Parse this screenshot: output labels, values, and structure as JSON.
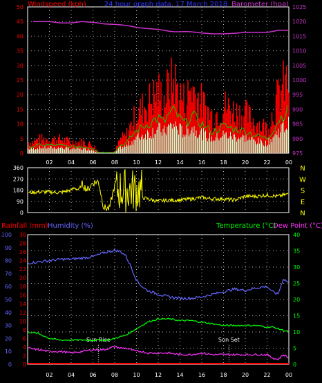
{
  "header": {
    "title": "24 hour graph data, 17 March 2018",
    "windspeed_label": "Windspeed (kph)",
    "barometer_label": "Barometer (hpa)"
  },
  "bottom_labels": {
    "rainfall": "Rainfall (mm)",
    "humidity": "Humidity (%)",
    "temperature": "Temperature (°C)",
    "dewpoint": "Dew Point (°C)",
    "sunrise": "Sun Rise",
    "sunset": "Sun Set"
  },
  "colors": {
    "windspeed": "#ff0000",
    "gust_fill": "#ccffcc",
    "wind_green": "#00cc00",
    "barometer": "#cc33cc",
    "direction": "#ffff00",
    "humidity": "#6666ff",
    "temperature": "#00ff00",
    "dewpoint": "#ff33ff",
    "rainfall": "#ff0000",
    "grid": "#bbbbbb"
  },
  "chart_data": [
    {
      "type": "line",
      "panel": "wind",
      "title": "24 hour graph data, 17 March 2018",
      "x_ticks": [
        "02",
        "04",
        "06",
        "08",
        "10",
        "12",
        "14",
        "16",
        "18",
        "20",
        "22",
        "00"
      ],
      "y_left_label": "Windspeed (kph)",
      "y_left_ticks": [
        "0",
        "5",
        "10",
        "15",
        "20",
        "25",
        "30",
        "35",
        "40",
        "45",
        "50"
      ],
      "y_left_lim": [
        0,
        50
      ],
      "y_right_label": "Barometer (hpa)",
      "y_right_ticks": [
        "975",
        "980",
        "985",
        "990",
        "995",
        "1000",
        "1005",
        "1010",
        "1015",
        "1020",
        "1025"
      ],
      "y_right_lim": [
        975,
        1025
      ],
      "x": [
        0.5,
        1,
        2,
        3,
        4,
        5,
        6,
        6.5,
        7,
        8,
        8.5,
        9,
        9.5,
        10,
        11,
        12,
        12.5,
        13,
        13.5,
        14,
        14.5,
        15,
        16,
        17,
        18,
        19,
        20,
        21,
        22,
        22.5,
        23,
        23.5,
        24
      ],
      "series": [
        {
          "name": "Windspeed (kph)",
          "values": [
            4,
            5,
            5,
            5,
            4,
            4,
            3,
            0.5,
            0.5,
            0.5,
            5,
            6,
            10,
            14,
            18,
            22,
            19,
            24,
            26,
            21,
            18,
            24,
            18,
            13,
            17,
            15,
            14,
            11,
            9,
            14,
            20,
            24,
            26
          ]
        },
        {
          "name": "Barometer (hpa)",
          "values": [
            1020,
            1020,
            1020,
            1019.5,
            1019.5,
            1020,
            1019.7,
            1019.5,
            1019.2,
            1019,
            1018.9,
            1018.7,
            1018.4,
            1018,
            1017.6,
            1017.3,
            1017,
            1016.7,
            1016.5,
            1016.5,
            1016.6,
            1016.5,
            1016.1,
            1015.8,
            1015.8,
            1016,
            1016.3,
            1016.3,
            1016.3,
            1016.6,
            1017,
            1017,
            1017
          ]
        }
      ]
    },
    {
      "type": "scatter",
      "panel": "direction",
      "y_left_ticks": [
        "0",
        "90",
        "180",
        "270",
        "360"
      ],
      "y_lim": [
        0,
        360
      ],
      "y_right_labels": [
        "N",
        "W",
        "S",
        "E",
        "N"
      ],
      "x": [
        0,
        1,
        2,
        3,
        3.5,
        4,
        4.3,
        4.7,
        5,
        5.5,
        6,
        6.5,
        7,
        7.5,
        8,
        8.5,
        9,
        9.5,
        10,
        11,
        12,
        13,
        14,
        15,
        16,
        17,
        18,
        19,
        20,
        21,
        22,
        23,
        24
      ],
      "series": [
        {
          "name": "Direction",
          "values": [
            160,
            165,
            165,
            160,
            170,
            180,
            200,
            180,
            230,
            180,
            240,
            250,
            40,
            30,
            220,
            220,
            200,
            290,
            130,
            110,
            90,
            100,
            100,
            110,
            120,
            110,
            110,
            100,
            130,
            130,
            140,
            130,
            150
          ]
        }
      ]
    },
    {
      "type": "line",
      "panel": "temperature",
      "x_ticks": [
        "02",
        "04",
        "06",
        "08",
        "10",
        "12",
        "14",
        "16",
        "18",
        "20",
        "22",
        "00"
      ],
      "y_rain_label": "Rainfall (mm)",
      "y_rain_ticks": [
        "0",
        "2",
        "4",
        "6",
        "8",
        "10",
        "12",
        "14",
        "16",
        "18",
        "20",
        "22",
        "24",
        "26",
        "28",
        "30"
      ],
      "y_rain_lim": [
        0,
        30
      ],
      "y_humidity_label": "Humidity (%)",
      "y_humidity_ticks": [
        "0",
        "10",
        "20",
        "30",
        "40",
        "50",
        "60",
        "70",
        "80",
        "90",
        "100"
      ],
      "y_humidity_lim": [
        0,
        100
      ],
      "y_right_label": "Temperature (°C)",
      "y_right_label_2": "Dew Point (°C)",
      "y_right_ticks": [
        "0",
        "5",
        "10",
        "15",
        "20",
        "25",
        "30",
        "35",
        "40"
      ],
      "y_right_lim": [
        0,
        40
      ],
      "annotations": [
        "Sun Rise",
        "Sun Set"
      ],
      "x": [
        0,
        1,
        2,
        3,
        4,
        5,
        6,
        7,
        7.5,
        8,
        8.5,
        9,
        9.5,
        10,
        10.5,
        11,
        12,
        13,
        14,
        15,
        16,
        17,
        18,
        19,
        20,
        21,
        22,
        22.5,
        23,
        23.5,
        24
      ],
      "series": [
        {
          "name": "Humidity (%)",
          "values": [
            78,
            79,
            80,
            81,
            81,
            82,
            83,
            86,
            87,
            88,
            87,
            84,
            75,
            65,
            60,
            57,
            54,
            52,
            51,
            51,
            52,
            54,
            56,
            58,
            57,
            59,
            60,
            56,
            54,
            66,
            63
          ]
        },
        {
          "name": "Temperature (°C)",
          "values": [
            10,
            9.5,
            8,
            7.5,
            7.5,
            7.5,
            7.5,
            7.5,
            7.5,
            8,
            8.5,
            9,
            10,
            11,
            12,
            13,
            14,
            14,
            13.5,
            13.5,
            13,
            12.5,
            12,
            12,
            12,
            12,
            11.5,
            11.5,
            11,
            10.5,
            10
          ]
        },
        {
          "name": "Dew Point (°C)",
          "values": [
            5,
            4.5,
            4,
            4,
            3.5,
            4,
            4.5,
            4.5,
            5,
            5.5,
            5,
            5,
            4.5,
            4,
            4,
            3.5,
            3.5,
            3.5,
            3,
            3,
            3.5,
            3,
            3,
            3,
            3,
            3,
            3,
            2,
            1.5,
            3,
            2
          ]
        },
        {
          "name": "Rainfall (mm)",
          "values": [
            0,
            0,
            0,
            0,
            0,
            0,
            0,
            0,
            0,
            0,
            0,
            0,
            0,
            0,
            0,
            0,
            0,
            0,
            0,
            0,
            0,
            0,
            0,
            0,
            0,
            0,
            0,
            0,
            0,
            0,
            0
          ]
        }
      ],
      "sunrise_hour": 6.5,
      "sunset_hour": 18.5
    }
  ]
}
